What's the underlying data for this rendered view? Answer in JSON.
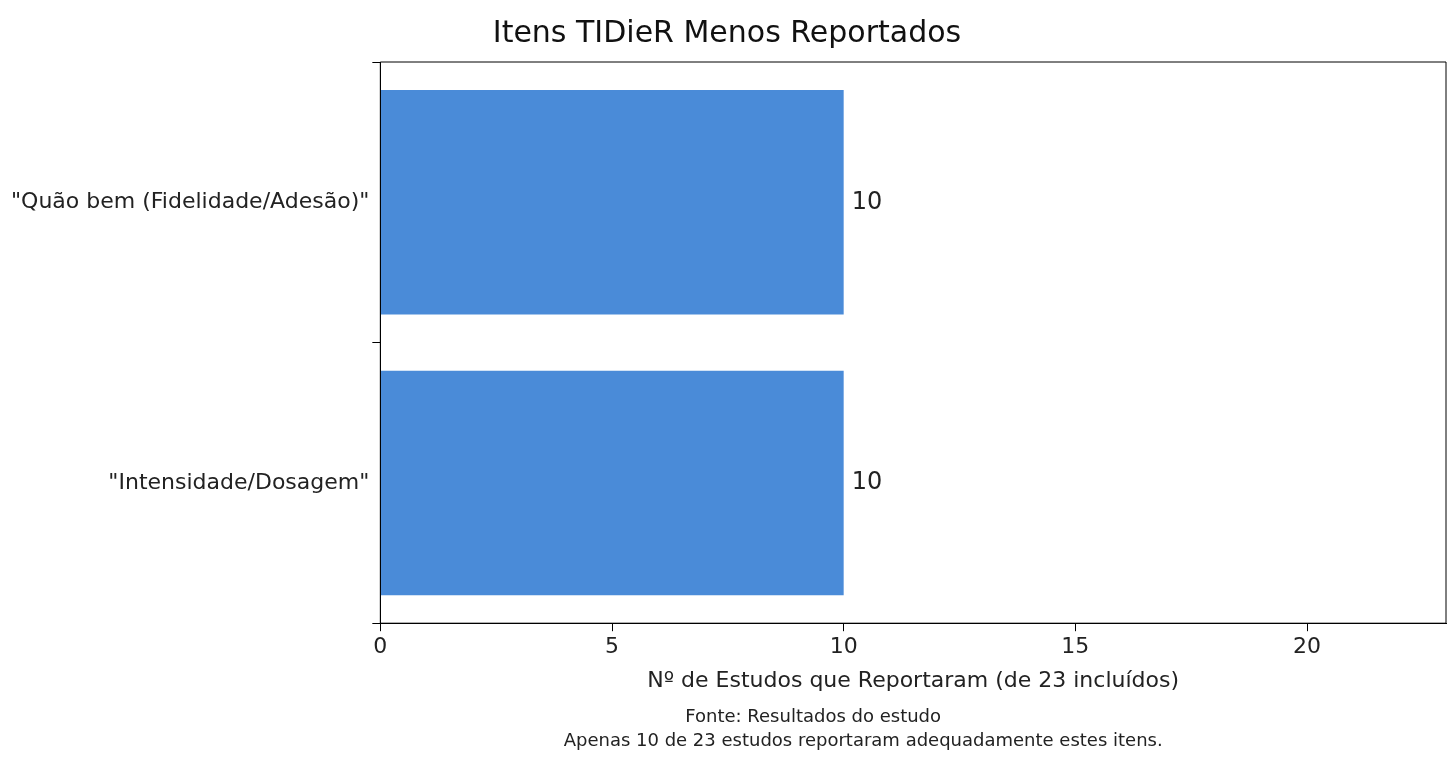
{
  "chart_data": {
    "type": "bar",
    "orientation": "horizontal",
    "title": "Itens TIDieR Menos Reportados",
    "xlabel": "Nº de Estudos que Reportaram (de 23 incluídos)",
    "categories": [
      "\"Quão bem (Fidelidade/Adesão)\"",
      "\"Intensidade/Dosagem\""
    ],
    "values": [
      10,
      10
    ],
    "color": "#4a8bd8",
    "xlim": [
      0,
      23
    ],
    "xticks": [
      0,
      5,
      10,
      15,
      20
    ],
    "grid": false,
    "legend": false,
    "data_labels": true,
    "annotations": [
      "Fonte: Resultados do estudo",
      "Apenas 10 de 23 estudos reportaram adequadamente estes itens."
    ]
  }
}
